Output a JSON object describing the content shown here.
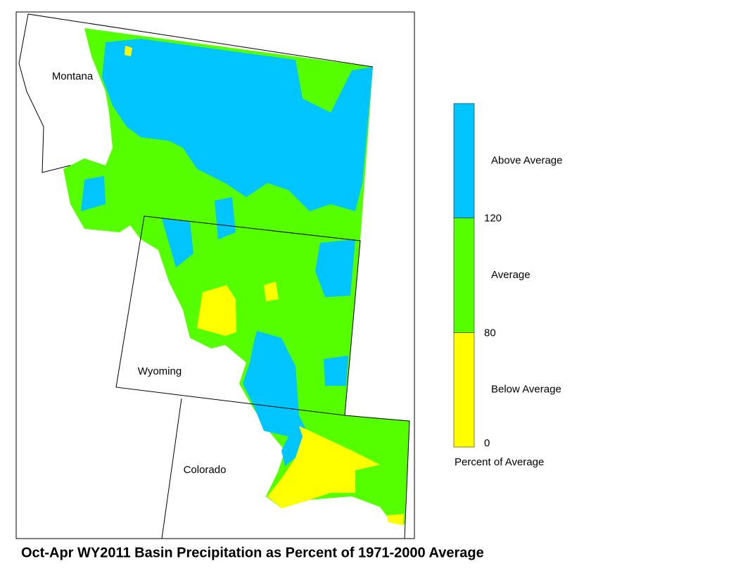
{
  "map": {
    "title": "Oct-Apr WY2011 Basin Precipitation as Percent of 1971-2000 Average",
    "labels": [
      "Montana",
      "Wyoming",
      "Colorado"
    ],
    "legend": {
      "title": "Percent of Average",
      "ticks": [
        0,
        80,
        120
      ],
      "classes": [
        {
          "label": "Below Average",
          "color": "#ffff00"
        },
        {
          "label": "Average",
          "color": "#55ff00"
        },
        {
          "label": "Above Average",
          "color": "#00c5ff"
        }
      ]
    }
  }
}
